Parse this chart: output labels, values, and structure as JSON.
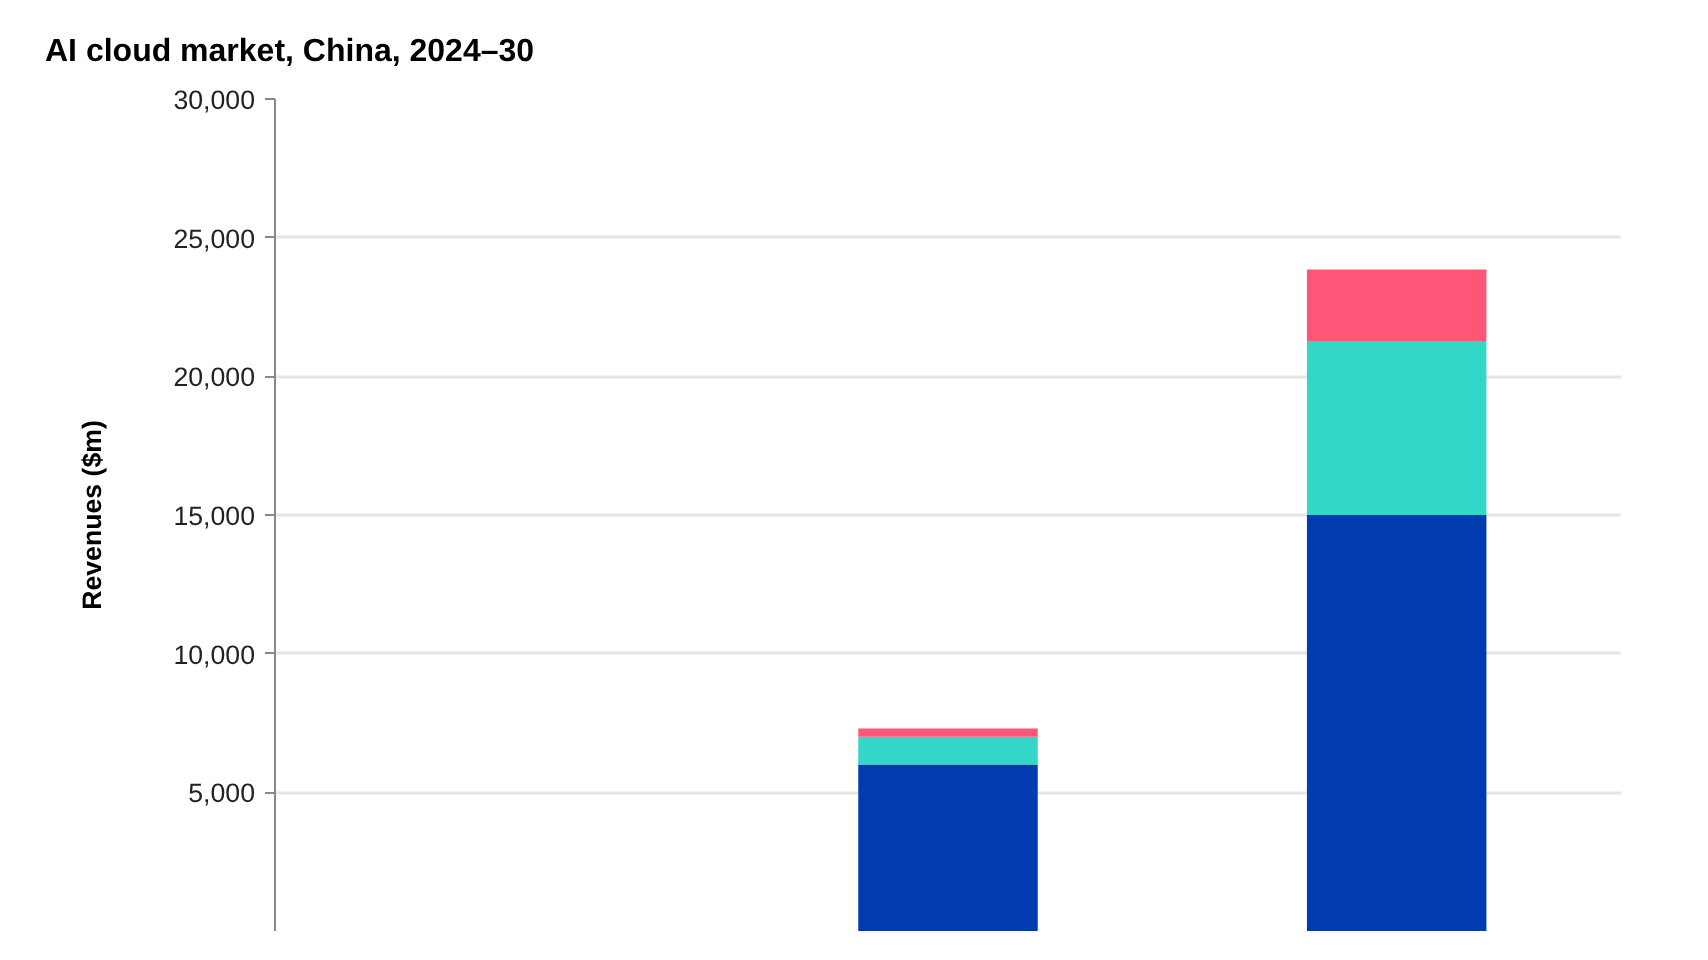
{
  "chart_data": {
    "type": "bar",
    "title": "AI cloud market, China, 2024–30",
    "ylabel": "Revenues ($m)",
    "stacked": true,
    "categories": [
      null,
      null,
      null
    ],
    "series": [
      {
        "color": "#003bb0",
        "values": [
          null,
          6000,
          15000
        ]
      },
      {
        "color": "#33d6c7",
        "values": [
          null,
          1000,
          6250
        ]
      },
      {
        "color": "#ff5577",
        "values": [
          null,
          300,
          2600
        ]
      }
    ],
    "ylim": [
      0,
      30000
    ],
    "yticks": [
      {
        "value": 5000,
        "label": "5,000"
      },
      {
        "value": 10000,
        "label": "10,000"
      },
      {
        "value": 15000,
        "label": "15,000"
      },
      {
        "value": 20000,
        "label": "20,000"
      },
      {
        "value": 25000,
        "label": "25,000"
      },
      {
        "value": 30000,
        "label": "30,000"
      }
    ],
    "grid": "y",
    "tick_labels": "y"
  }
}
